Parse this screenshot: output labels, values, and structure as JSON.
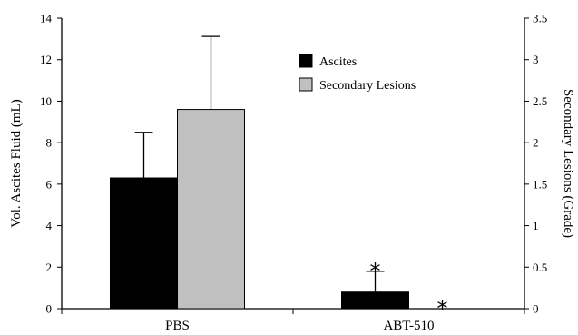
{
  "chart_data": {
    "type": "bar",
    "categories": [
      "PBS",
      "ABT-510"
    ],
    "series": [
      {
        "name": "Ascites",
        "axis": "left",
        "color": "#000000",
        "values": [
          6.3,
          0.8
        ],
        "errors": [
          2.2,
          1.0
        ]
      },
      {
        "name": "Secondary Lesions",
        "axis": "right",
        "color": "#c0c0c0",
        "values": [
          2.4,
          0
        ],
        "errors": [
          0.88,
          0
        ]
      }
    ],
    "ylabel": "Vol. Ascites Fluid (mL)",
    "y2label": "Secondary Lesions (Grade)",
    "ylim": [
      0,
      14
    ],
    "y2lim": [
      0,
      3.5
    ],
    "yticks": [
      "0",
      "2",
      "4",
      "6",
      "8",
      "10",
      "12",
      "14"
    ],
    "y2ticks": [
      "0",
      "0.5",
      "1",
      "1.5",
      "2",
      "2.5",
      "3",
      "3.5"
    ],
    "annotations": [
      {
        "text": "*",
        "category": "ABT-510",
        "series": "Ascites"
      },
      {
        "text": "*",
        "category": "ABT-510",
        "series": "Secondary Lesions"
      }
    ],
    "grid": false,
    "legend_position": "top-center"
  }
}
